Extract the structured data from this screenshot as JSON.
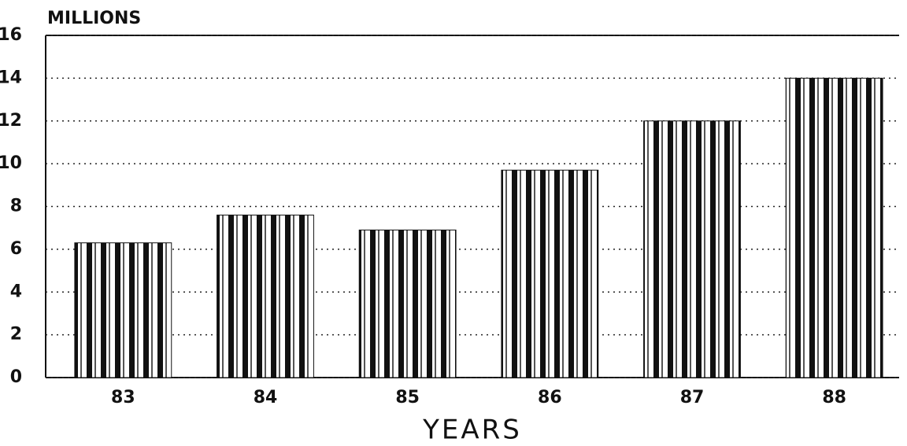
{
  "chart_data": {
    "type": "bar",
    "y_label": "MILLIONS",
    "x_label": "YEARS",
    "categories": [
      "83",
      "84",
      "85",
      "86",
      "87",
      "88"
    ],
    "values": [
      6.3,
      7.6,
      6.9,
      9.7,
      12,
      14
    ],
    "color": "#111111",
    "ylim": [
      0,
      16
    ],
    "yticks": [
      0,
      2,
      4,
      6,
      8,
      10,
      12,
      14,
      16
    ],
    "grid": true
  }
}
